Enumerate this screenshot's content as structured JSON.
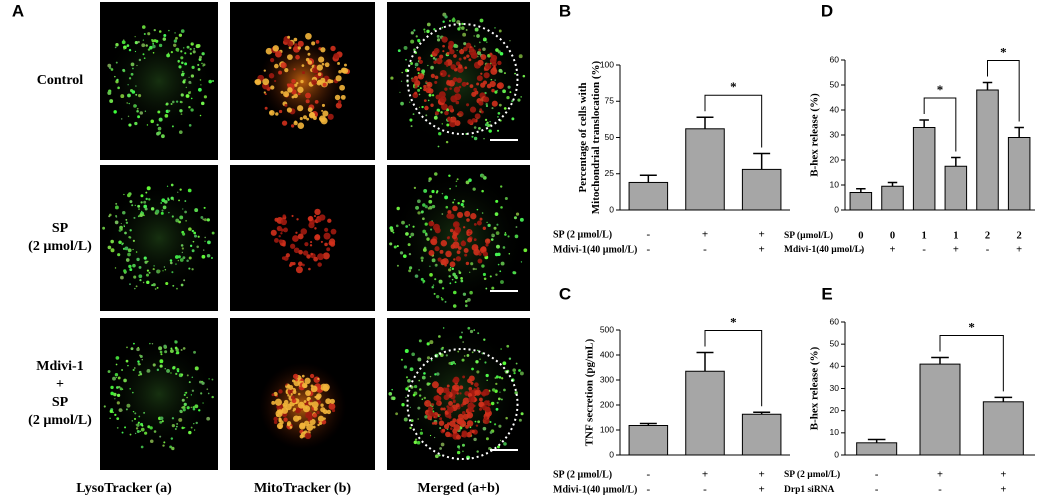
{
  "panel_a": {
    "label": "A",
    "rows": [
      [
        "Control"
      ],
      [
        "SP",
        "(2 µmol/L)"
      ],
      [
        "Mdivi-1",
        "+",
        "SP",
        "(2 µmol/L)"
      ]
    ],
    "columns": [
      "LysoTracker  (a)",
      "MitoTracker (b)",
      "Merged (a+b)"
    ]
  },
  "chart_data": [
    {
      "type": "bar",
      "panel": "B",
      "ylabel": [
        "Percentage of cells with",
        "Mitochondrial translocation (%)"
      ],
      "values": [
        19,
        56,
        28
      ],
      "errors": [
        5,
        8,
        11
      ],
      "ylim": [
        0,
        100
      ],
      "yticks": [
        0,
        25,
        50,
        75,
        100
      ],
      "color": "#a6a6a6",
      "conditions": [
        {
          "name": "SP (2 µmol/L)",
          "marks": [
            "-",
            "+",
            "+"
          ]
        },
        {
          "name": "Mdivi-1(40 µmol/L)",
          "marks": [
            "-",
            "-",
            "+"
          ]
        }
      ],
      "significance": [
        {
          "label": "*",
          "between": [
            1,
            2
          ]
        }
      ]
    },
    {
      "type": "bar",
      "panel": "C",
      "ylabel": [
        "TNF secretion (pg/mL)"
      ],
      "values": [
        118,
        335,
        163
      ],
      "errors": [
        8,
        75,
        8
      ],
      "ylim": [
        0,
        500
      ],
      "yticks": [
        0,
        100,
        200,
        300,
        400,
        500
      ],
      "color": "#a6a6a6",
      "conditions": [
        {
          "name": "SP (2 µmol/L)",
          "marks": [
            "-",
            "+",
            "+"
          ]
        },
        {
          "name": "Mdivi-1(40 µmol/L)",
          "marks": [
            "-",
            "-",
            "+"
          ]
        }
      ],
      "significance": [
        {
          "label": "*",
          "between": [
            1,
            2
          ]
        }
      ]
    },
    {
      "type": "bar",
      "panel": "D",
      "ylabel": [
        "B-hex release (%)"
      ],
      "values": [
        7,
        9.5,
        33,
        17.5,
        48,
        29
      ],
      "errors": [
        1.5,
        1.5,
        3,
        3.5,
        3,
        4
      ],
      "ylim": [
        0,
        60
      ],
      "yticks": [
        0,
        10,
        20,
        30,
        40,
        50,
        60
      ],
      "color": "#a6a6a6",
      "conditions": [
        {
          "name": "SP (µmol/L)",
          "marks": [
            "0",
            "0",
            "1",
            "1",
            "2",
            "2"
          ]
        },
        {
          "name": "Mdivi-1(40 µmol/L)",
          "marks": [
            "-",
            "+",
            "-",
            "+",
            "-",
            "+"
          ]
        }
      ],
      "significance": [
        {
          "label": "*",
          "between": [
            2,
            3
          ]
        },
        {
          "label": "*",
          "between": [
            4,
            5
          ]
        }
      ]
    },
    {
      "type": "bar",
      "panel": "E",
      "ylabel": [
        "B-hex release (%)"
      ],
      "values": [
        5.5,
        41,
        24
      ],
      "errors": [
        1.5,
        3,
        2
      ],
      "ylim": [
        0,
        60
      ],
      "yticks": [
        0,
        10,
        20,
        30,
        40,
        50,
        60
      ],
      "color": "#a6a6a6",
      "conditions": [
        {
          "name": "SP (2 µmol/L)",
          "marks": [
            "-",
            "+",
            "+"
          ]
        },
        {
          "name": "Drp1 siRNA",
          "marks": [
            "-",
            "-",
            "+"
          ]
        }
      ],
      "significance": [
        {
          "label": "*",
          "between": [
            1,
            2
          ]
        }
      ]
    }
  ]
}
